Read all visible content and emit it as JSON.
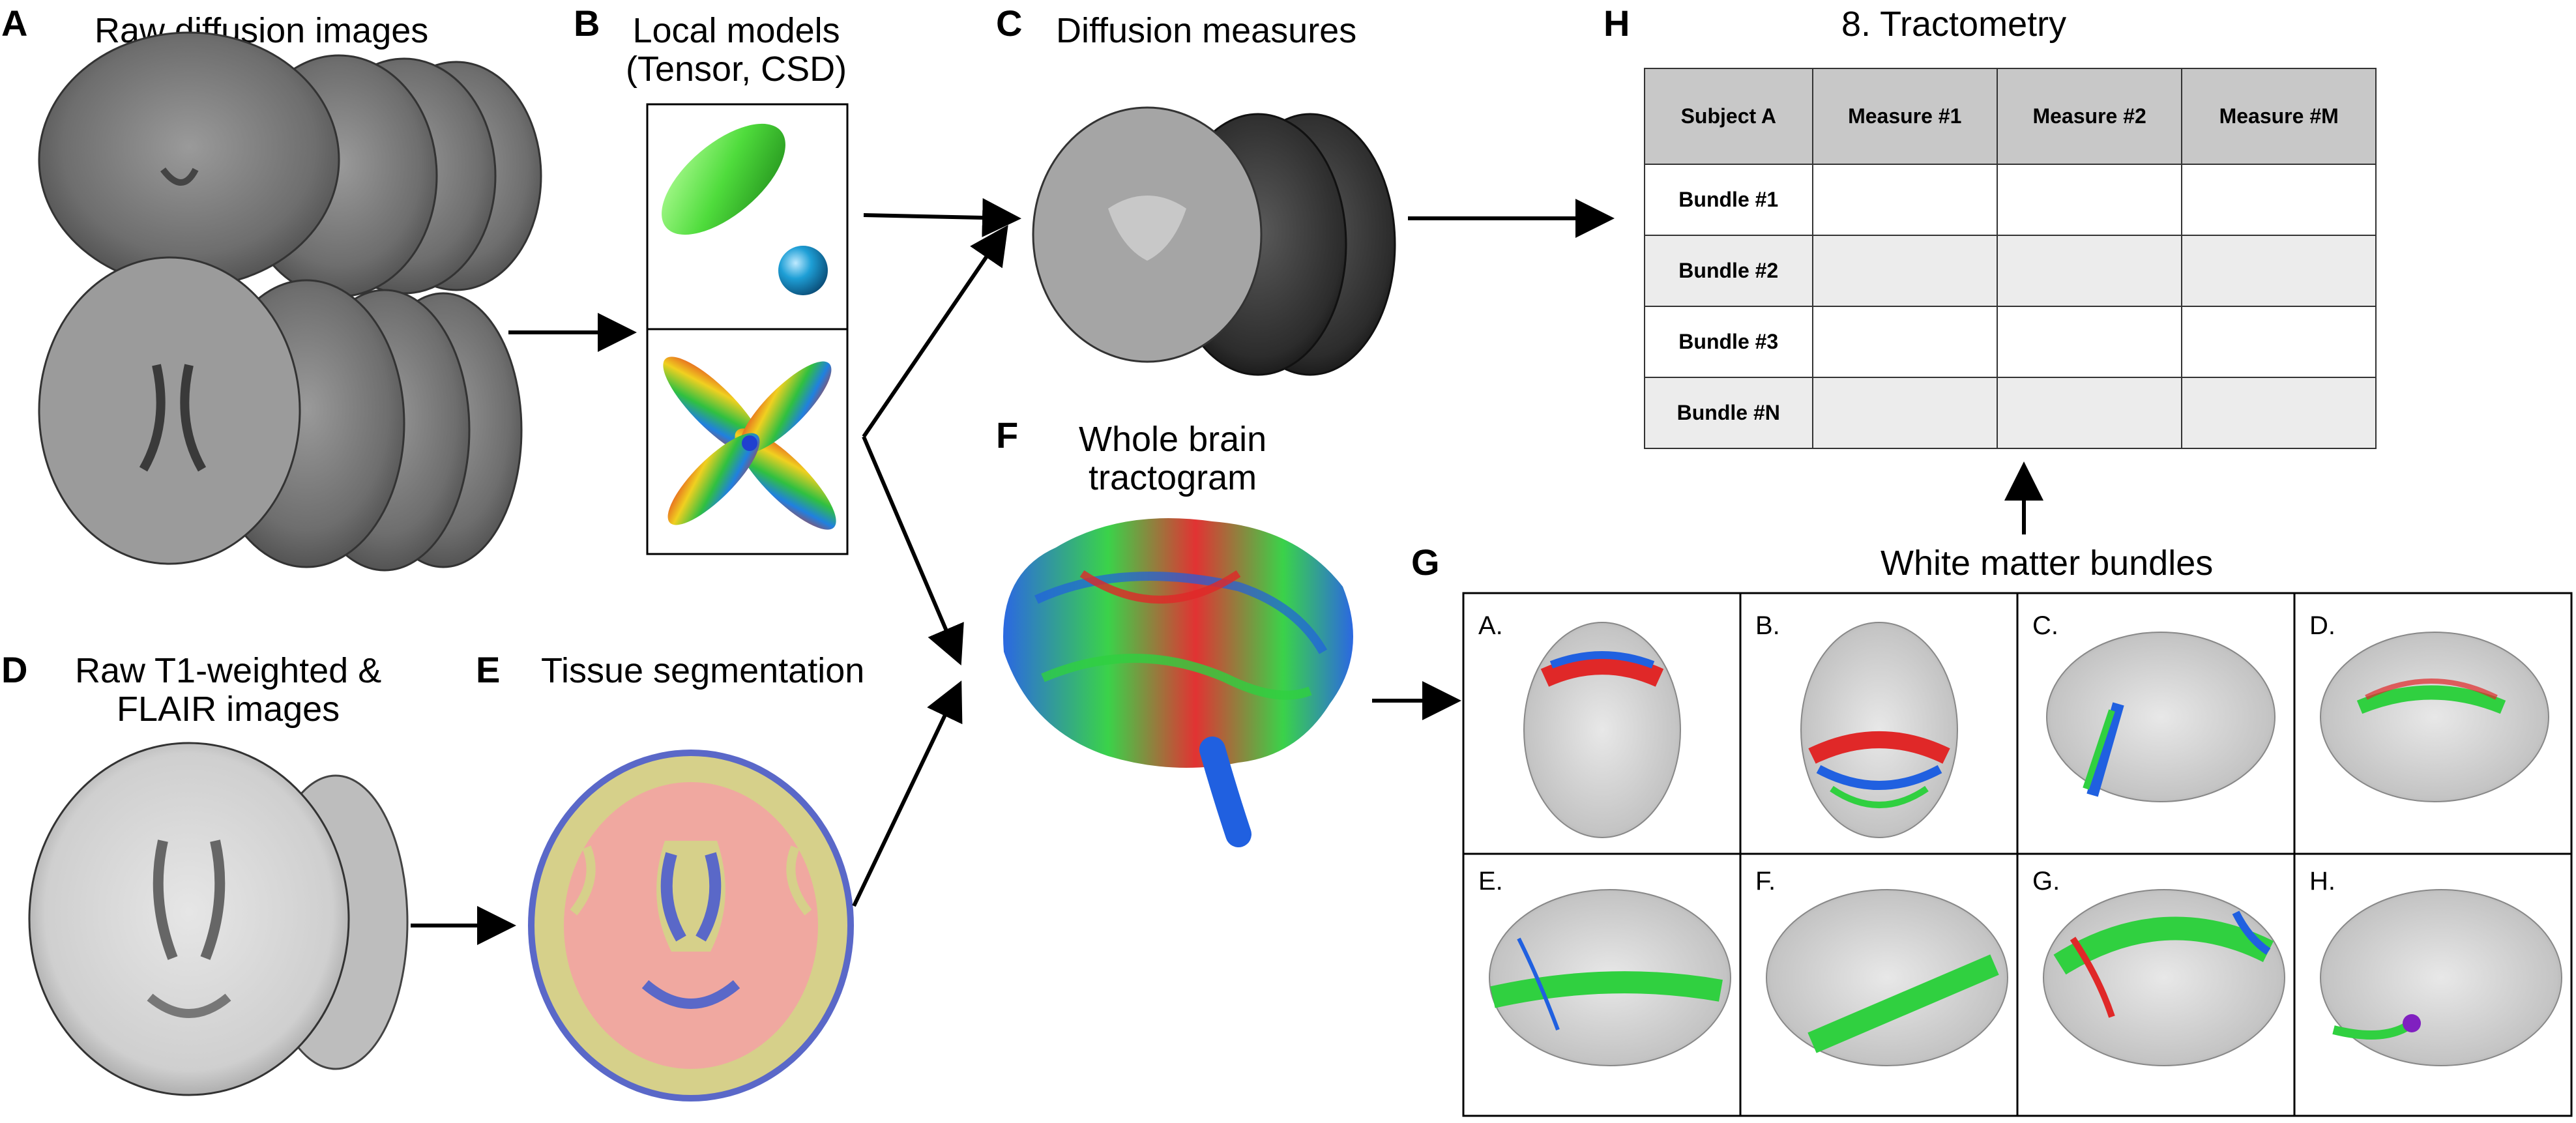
{
  "panels": {
    "A": {
      "letter": "A",
      "title": "Raw diffusion images"
    },
    "B": {
      "letter": "B",
      "title_line1": "Local models",
      "title_line2": "(Tensor, CSD)"
    },
    "C": {
      "letter": "C",
      "title": "Diffusion measures"
    },
    "D": {
      "letter": "D",
      "title_line1": "Raw T1-weighted &",
      "title_line2": "FLAIR images"
    },
    "E": {
      "letter": "E",
      "title": "Tissue segmentation"
    },
    "F": {
      "letter": "F",
      "title_line1": "Whole brain",
      "title_line2": "tractogram"
    },
    "G": {
      "letter": "G",
      "title": "White matter bundles"
    },
    "H": {
      "letter": "H",
      "title": "8. Tractometry"
    }
  },
  "table": {
    "headers": [
      "Subject A",
      "Measure #1",
      "Measure #2",
      "Measure #M"
    ],
    "rows": [
      "Bundle #1",
      "Bundle #2",
      "Bundle #3",
      "Bundle  #N"
    ]
  },
  "bundles": [
    "A.",
    "B.",
    "C.",
    "D.",
    "E.",
    "F.",
    "G.",
    "H."
  ],
  "colors": {
    "tensor_green": "#4fdc3c",
    "sphere_blue": "#1e9fd6",
    "csf_blue": "#5a68c8",
    "wm_yellow": "#d6d08a",
    "gm_pink": "#f0a8a0",
    "arrow": "#000000"
  }
}
